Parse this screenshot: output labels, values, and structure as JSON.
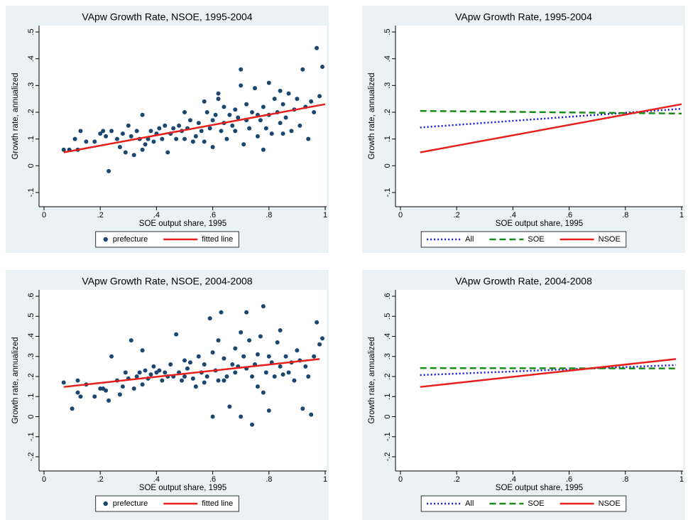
{
  "chart_data": [
    {
      "type": "scatter",
      "title": "VApw Growth Rate, NSOE, 1995-2004",
      "xlabel": "SOE output share, 1995",
      "ylabel": "Growth rate, annualized",
      "xlim": [
        0,
        1
      ],
      "ylim": [
        -0.1,
        0.5
      ],
      "grid": false,
      "legend": "bottom",
      "xticks": [
        0,
        {
          "value": 0.2,
          "label": ".2"
        },
        {
          "value": 0.4,
          "label": ".4"
        },
        {
          "value": 0.6,
          "label": ".6"
        },
        {
          "value": 0.8,
          "label": ".8"
        },
        1
      ],
      "yticks": [
        {
          "value": -0.1,
          "label": "-.1"
        },
        0,
        {
          "value": 0.1,
          "label": ".1"
        },
        {
          "value": 0.2,
          "label": ".2"
        },
        {
          "value": 0.3,
          "label": ".3"
        },
        {
          "value": 0.4,
          "label": ".4"
        },
        {
          "value": 0.5,
          "label": ".5"
        }
      ],
      "series": [
        {
          "name": "prefecture",
          "mode": "markers",
          "color": "#1a476f",
          "x": [
            0.07,
            0.09,
            0.11,
            0.12,
            0.13,
            0.15,
            0.18,
            0.2,
            0.21,
            0.22,
            0.23,
            0.24,
            0.26,
            0.27,
            0.28,
            0.29,
            0.3,
            0.31,
            0.32,
            0.33,
            0.34,
            0.35,
            0.35,
            0.36,
            0.37,
            0.38,
            0.39,
            0.4,
            0.41,
            0.42,
            0.43,
            0.44,
            0.45,
            0.46,
            0.47,
            0.48,
            0.49,
            0.5,
            0.5,
            0.51,
            0.52,
            0.53,
            0.54,
            0.55,
            0.56,
            0.57,
            0.57,
            0.58,
            0.59,
            0.6,
            0.6,
            0.61,
            0.62,
            0.63,
            0.64,
            0.64,
            0.65,
            0.66,
            0.67,
            0.68,
            0.68,
            0.69,
            0.7,
            0.71,
            0.72,
            0.72,
            0.73,
            0.74,
            0.75,
            0.76,
            0.76,
            0.77,
            0.78,
            0.79,
            0.8,
            0.8,
            0.81,
            0.82,
            0.83,
            0.84,
            0.84,
            0.85,
            0.86,
            0.87,
            0.88,
            0.89,
            0.9,
            0.91,
            0.92,
            0.93,
            0.94,
            0.95,
            0.96,
            0.97,
            0.98,
            0.99,
            0.62,
            0.7,
            0.78,
            0.85
          ],
          "values": [
            0.06,
            0.06,
            0.1,
            0.06,
            0.13,
            0.09,
            0.09,
            0.12,
            0.13,
            0.11,
            -0.02,
            0.13,
            0.1,
            0.07,
            0.12,
            0.05,
            0.15,
            0.11,
            0.04,
            0.13,
            0.1,
            0.19,
            0.06,
            0.08,
            0.1,
            0.13,
            0.09,
            0.12,
            0.14,
            0.1,
            0.15,
            0.05,
            0.12,
            0.14,
            0.1,
            0.15,
            0.13,
            0.2,
            0.1,
            0.14,
            0.17,
            0.09,
            0.11,
            0.16,
            0.13,
            0.24,
            0.09,
            0.2,
            0.14,
            0.07,
            0.17,
            0.19,
            0.27,
            0.13,
            0.16,
            0.22,
            0.1,
            0.19,
            0.15,
            0.13,
            0.21,
            0.18,
            0.36,
            0.08,
            0.17,
            0.23,
            0.14,
            0.2,
            0.29,
            0.11,
            0.19,
            0.17,
            0.22,
            0.14,
            0.31,
            0.19,
            0.12,
            0.25,
            0.2,
            0.28,
            0.16,
            0.23,
            0.18,
            0.27,
            0.13,
            0.21,
            0.25,
            0.15,
            0.36,
            0.22,
            0.1,
            0.24,
            0.2,
            0.44,
            0.26,
            0.37,
            0.25,
            0.3,
            0.06,
            0.12
          ]
        },
        {
          "name": "fitted line",
          "mode": "lines",
          "style": "solid",
          "color": "#e8201b",
          "x": [
            0.07,
            1
          ],
          "values": [
            0.05,
            0.23
          ]
        }
      ]
    },
    {
      "type": "line",
      "title": "VApw Growth Rate, 1995-2004",
      "xlabel": "SOE output share, 1995",
      "ylabel": "Growth rate, annualized",
      "xlim": [
        0,
        1
      ],
      "ylim": [
        -0.1,
        0.5
      ],
      "grid": false,
      "legend": "bottom",
      "xticks": [
        0,
        {
          "value": 0.2,
          "label": ".2"
        },
        {
          "value": 0.4,
          "label": ".4"
        },
        {
          "value": 0.6,
          "label": ".6"
        },
        {
          "value": 0.8,
          "label": ".8"
        },
        1
      ],
      "yticks": [
        {
          "value": -0.1,
          "label": "-.1"
        },
        0,
        {
          "value": 0.1,
          "label": ".1"
        },
        {
          "value": 0.2,
          "label": ".2"
        },
        {
          "value": 0.3,
          "label": ".3"
        },
        {
          "value": 0.4,
          "label": ".4"
        },
        {
          "value": 0.5,
          "label": ".5"
        }
      ],
      "series": [
        {
          "name": "All",
          "mode": "lines",
          "style": "dot",
          "color": "#1515d8",
          "x": [
            0.07,
            1
          ],
          "values": [
            0.143,
            0.213
          ]
        },
        {
          "name": "SOE",
          "mode": "lines",
          "style": "dash",
          "color": "#1a8a1a",
          "x": [
            0.07,
            1
          ],
          "values": [
            0.205,
            0.195
          ]
        },
        {
          "name": "NSOE",
          "mode": "lines",
          "style": "solid",
          "color": "#e8201b",
          "x": [
            0.07,
            1
          ],
          "values": [
            0.05,
            0.23
          ]
        }
      ]
    },
    {
      "type": "scatter",
      "title": "VApw Growth Rate, NSOE, 2004-2008",
      "xlabel": "SOE output share, 1995",
      "ylabel": "Growth rate, annualized",
      "xlim": [
        0,
        1
      ],
      "ylim": [
        -0.2,
        0.6
      ],
      "grid": false,
      "legend": "bottom",
      "xticks": [
        0,
        {
          "value": 0.2,
          "label": ".2"
        },
        {
          "value": 0.4,
          "label": ".4"
        },
        {
          "value": 0.6,
          "label": ".6"
        },
        {
          "value": 0.8,
          "label": ".8"
        },
        1
      ],
      "yticks": [
        {
          "value": -0.2,
          "label": "-.2"
        },
        {
          "value": -0.1,
          "label": "-.1"
        },
        0,
        {
          "value": 0.1,
          "label": ".1"
        },
        {
          "value": 0.2,
          "label": ".2"
        },
        {
          "value": 0.3,
          "label": ".3"
        },
        {
          "value": 0.4,
          "label": ".4"
        },
        {
          "value": 0.5,
          "label": ".5"
        },
        {
          "value": 0.6,
          "label": ".6"
        }
      ],
      "series": [
        {
          "name": "prefecture",
          "mode": "markers",
          "color": "#1a476f",
          "x": [
            0.07,
            0.1,
            0.12,
            0.12,
            0.13,
            0.15,
            0.18,
            0.2,
            0.21,
            0.22,
            0.23,
            0.24,
            0.26,
            0.27,
            0.28,
            0.29,
            0.3,
            0.31,
            0.32,
            0.33,
            0.34,
            0.35,
            0.35,
            0.36,
            0.37,
            0.38,
            0.39,
            0.4,
            0.41,
            0.42,
            0.43,
            0.44,
            0.45,
            0.46,
            0.47,
            0.48,
            0.49,
            0.5,
            0.5,
            0.51,
            0.52,
            0.53,
            0.54,
            0.55,
            0.56,
            0.57,
            0.57,
            0.58,
            0.59,
            0.6,
            0.6,
            0.61,
            0.62,
            0.63,
            0.64,
            0.64,
            0.65,
            0.66,
            0.67,
            0.68,
            0.68,
            0.69,
            0.7,
            0.71,
            0.72,
            0.72,
            0.73,
            0.74,
            0.75,
            0.76,
            0.76,
            0.77,
            0.78,
            0.79,
            0.8,
            0.8,
            0.81,
            0.82,
            0.83,
            0.84,
            0.84,
            0.85,
            0.86,
            0.87,
            0.88,
            0.89,
            0.9,
            0.91,
            0.92,
            0.93,
            0.94,
            0.95,
            0.96,
            0.97,
            0.98,
            0.99,
            0.62,
            0.7,
            0.78,
            0.74
          ],
          "values": [
            0.17,
            0.04,
            0.18,
            0.12,
            0.1,
            0.16,
            0.1,
            0.14,
            0.14,
            0.13,
            0.08,
            0.3,
            0.18,
            0.11,
            0.15,
            0.22,
            0.19,
            0.38,
            0.14,
            0.2,
            0.22,
            0.33,
            0.16,
            0.23,
            0.19,
            0.21,
            0.25,
            0.22,
            0.23,
            0.18,
            0.22,
            0.2,
            0.26,
            0.2,
            0.41,
            0.22,
            0.18,
            0.28,
            0.2,
            0.24,
            0.27,
            0.19,
            0.15,
            0.3,
            0.22,
            0.26,
            0.17,
            0.2,
            0.49,
            0.0,
            0.32,
            0.23,
            0.38,
            0.52,
            0.29,
            0.18,
            0.2,
            0.05,
            0.26,
            0.34,
            0.22,
            0.25,
            0.42,
            0.3,
            0.24,
            0.52,
            0.38,
            0.2,
            0.26,
            0.31,
            0.15,
            0.4,
            0.55,
            0.22,
            0.3,
            0.03,
            0.27,
            0.2,
            0.37,
            0.25,
            0.43,
            0.21,
            0.3,
            0.22,
            0.27,
            0.18,
            0.33,
            0.28,
            0.04,
            0.25,
            0.2,
            0.01,
            0.3,
            0.47,
            0.36,
            0.39,
            0.18,
            0.0,
            0.12,
            -0.04
          ]
        },
        {
          "name": "fitted line",
          "mode": "lines",
          "style": "solid",
          "color": "#e8201b",
          "x": [
            0.07,
            0.98
          ],
          "values": [
            0.148,
            0.287
          ]
        }
      ]
    },
    {
      "type": "line",
      "title": "VApw Growth Rate, 2004-2008",
      "xlabel": "SOE output share, 1995",
      "ylabel": "Growth rate, annualized",
      "xlim": [
        0,
        1
      ],
      "ylim": [
        -0.2,
        0.6
      ],
      "grid": false,
      "legend": "bottom",
      "xticks": [
        0,
        {
          "value": 0.2,
          "label": ".2"
        },
        {
          "value": 0.4,
          "label": ".4"
        },
        {
          "value": 0.6,
          "label": ".6"
        },
        {
          "value": 0.8,
          "label": ".8"
        },
        1
      ],
      "yticks": [
        {
          "value": -0.2,
          "label": "-.2"
        },
        {
          "value": -0.1,
          "label": "-.1"
        },
        0,
        {
          "value": 0.1,
          "label": ".1"
        },
        {
          "value": 0.2,
          "label": ".2"
        },
        {
          "value": 0.3,
          "label": ".3"
        },
        {
          "value": 0.4,
          "label": ".4"
        },
        {
          "value": 0.5,
          "label": ".5"
        },
        {
          "value": 0.6,
          "label": ".6"
        }
      ],
      "series": [
        {
          "name": "All",
          "mode": "lines",
          "style": "dot",
          "color": "#1515d8",
          "x": [
            0.07,
            0.98
          ],
          "values": [
            0.207,
            0.257
          ]
        },
        {
          "name": "SOE",
          "mode": "lines",
          "style": "dash",
          "color": "#1a8a1a",
          "x": [
            0.07,
            0.98
          ],
          "values": [
            0.242,
            0.24
          ]
        },
        {
          "name": "NSOE",
          "mode": "lines",
          "style": "solid",
          "color": "#e8201b",
          "x": [
            0.07,
            0.98
          ],
          "values": [
            0.148,
            0.287
          ]
        }
      ]
    }
  ]
}
